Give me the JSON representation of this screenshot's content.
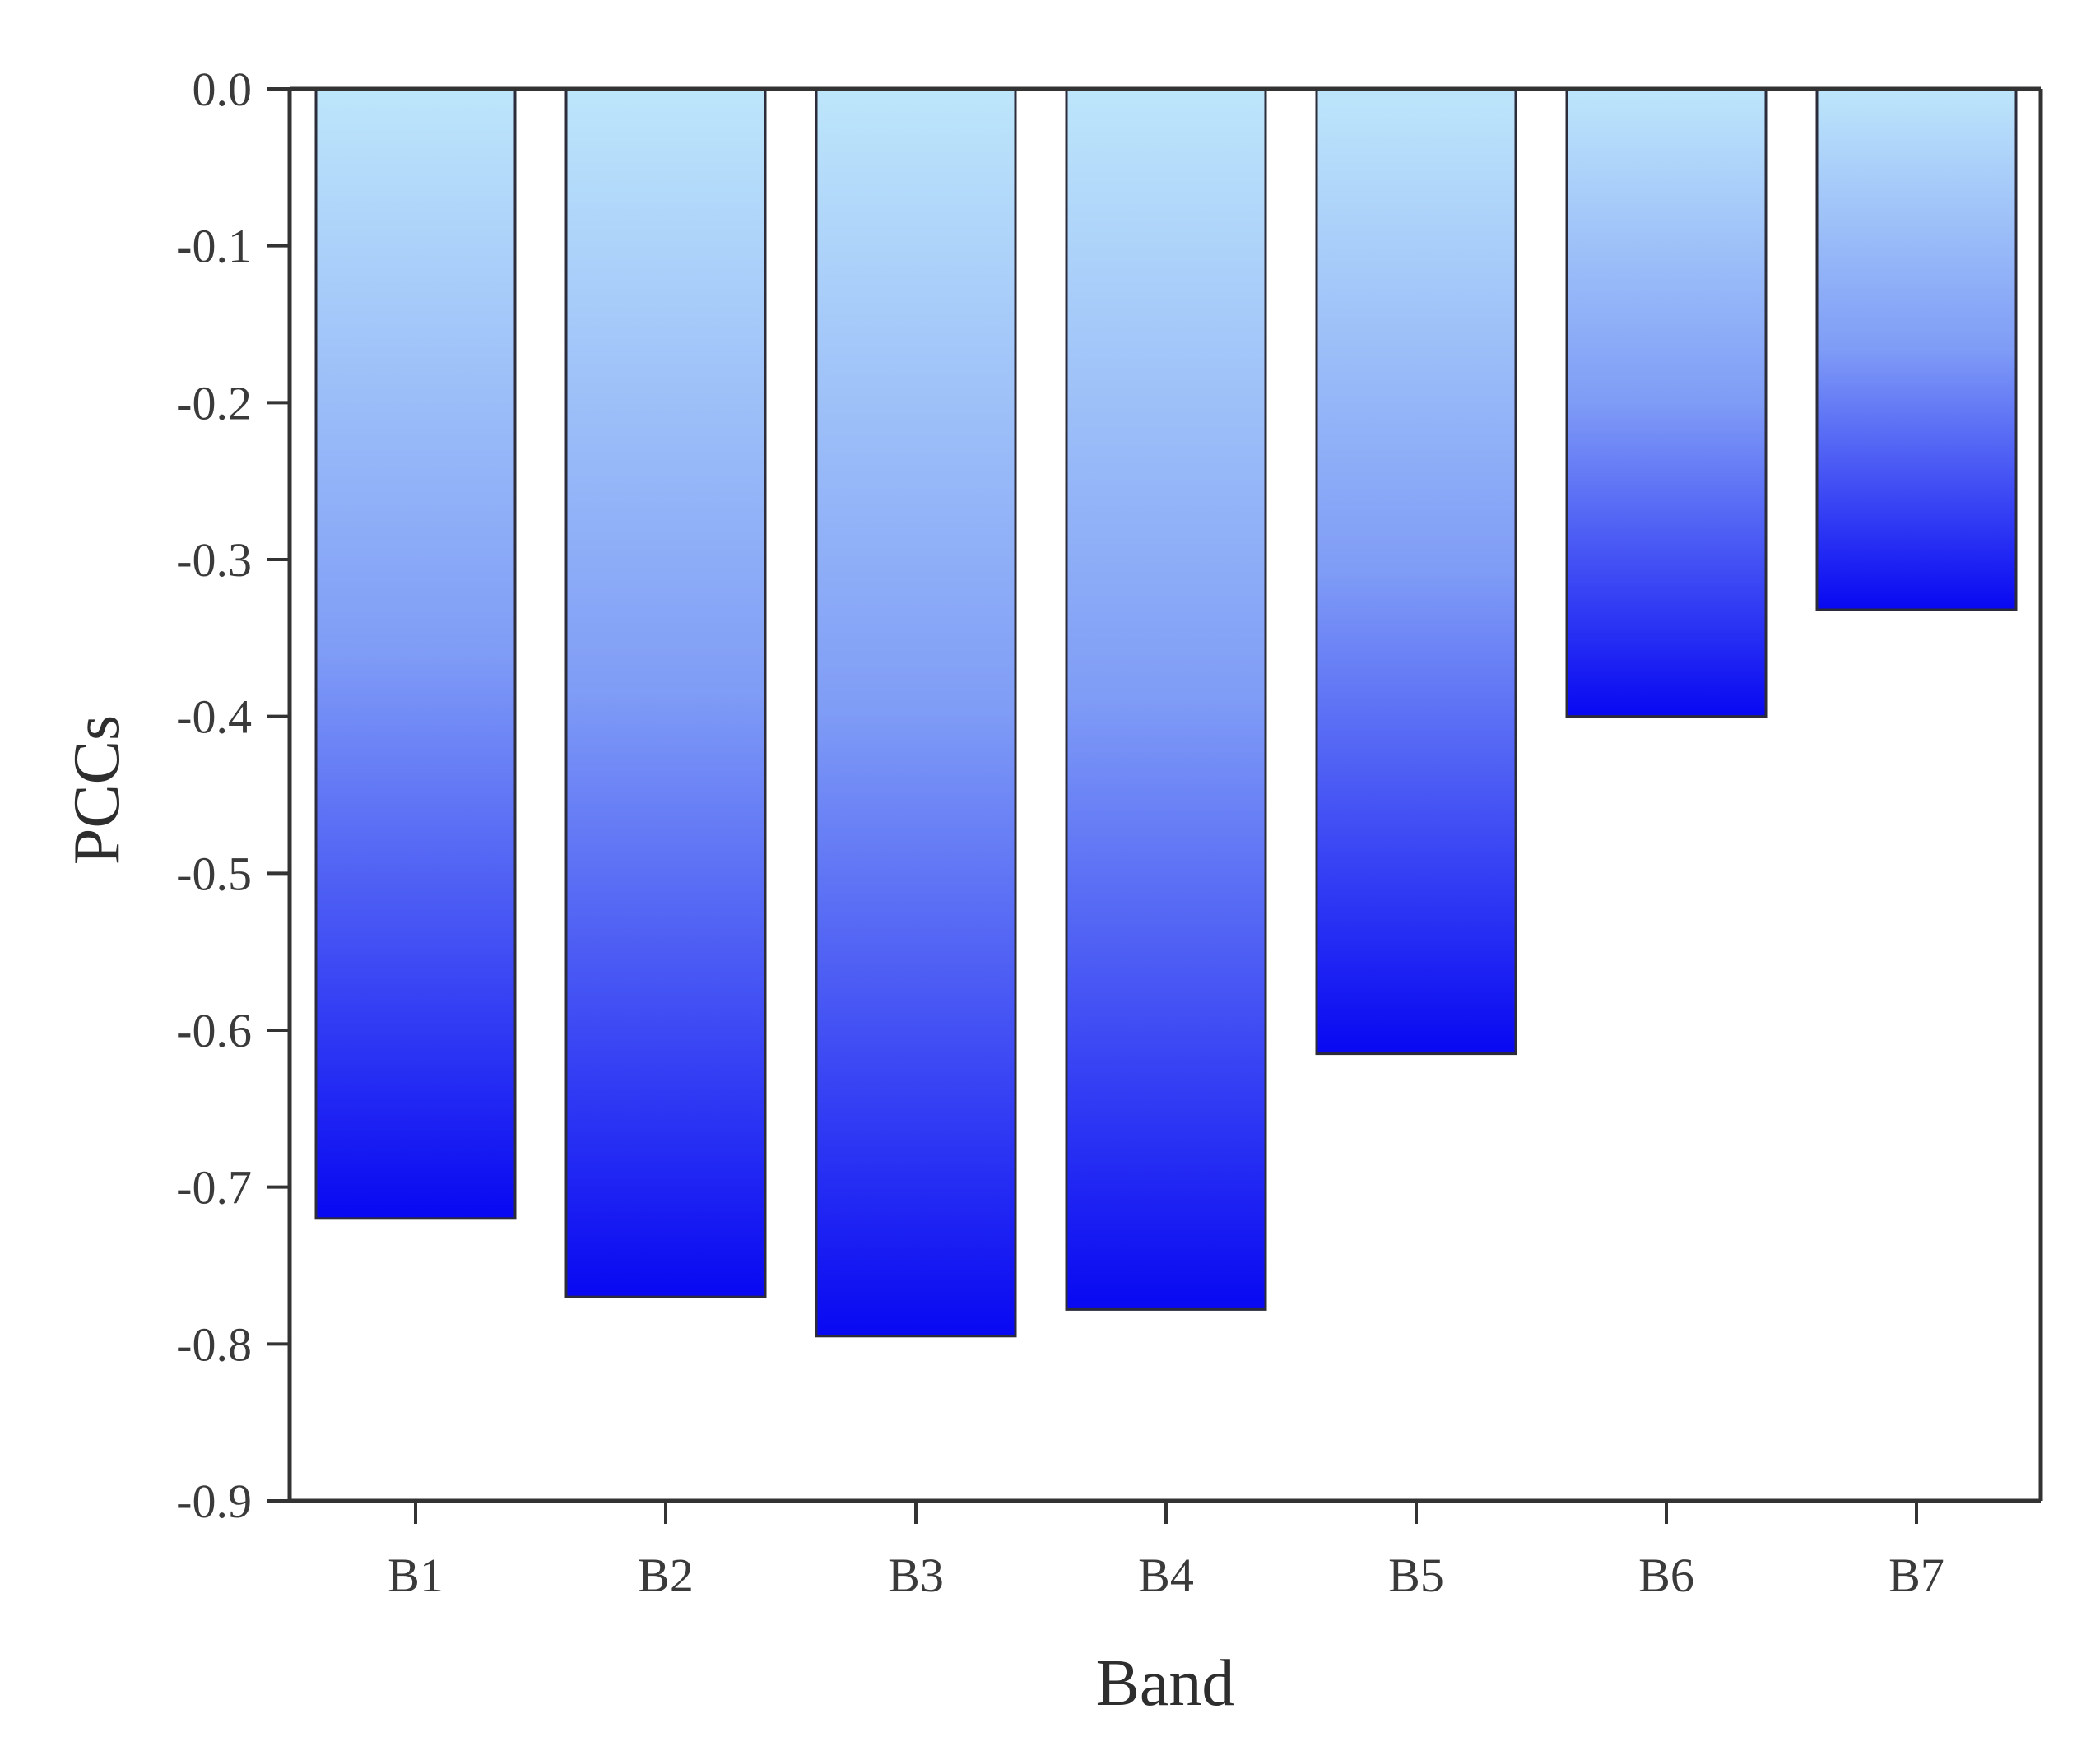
{
  "chart_data": {
    "type": "bar",
    "categories": [
      "B1",
      "B2",
      "B3",
      "B4",
      "B5",
      "B6",
      "B7"
    ],
    "values": [
      -0.72,
      -0.77,
      -0.795,
      -0.778,
      -0.615,
      -0.4,
      -0.332
    ],
    "xlabel": "Band",
    "ylabel": "PCCs",
    "ylim": [
      -0.9,
      0.0
    ],
    "yticks": [
      "0.0",
      "-0.1",
      "-0.2",
      "-0.3",
      "-0.4",
      "-0.5",
      "-0.6",
      "-0.7",
      "-0.8",
      "-0.9"
    ],
    "ytick_values": [
      0.0,
      -0.1,
      -0.2,
      -0.3,
      -0.4,
      -0.5,
      -0.6,
      -0.7,
      -0.8,
      -0.9
    ],
    "grid": false,
    "legend": "none",
    "colors": {
      "bar_top": "#bde6fb",
      "bar_mid": "#7f9cf6",
      "bar_bottom": "#0808f2",
      "axis": "#333333"
    }
  }
}
